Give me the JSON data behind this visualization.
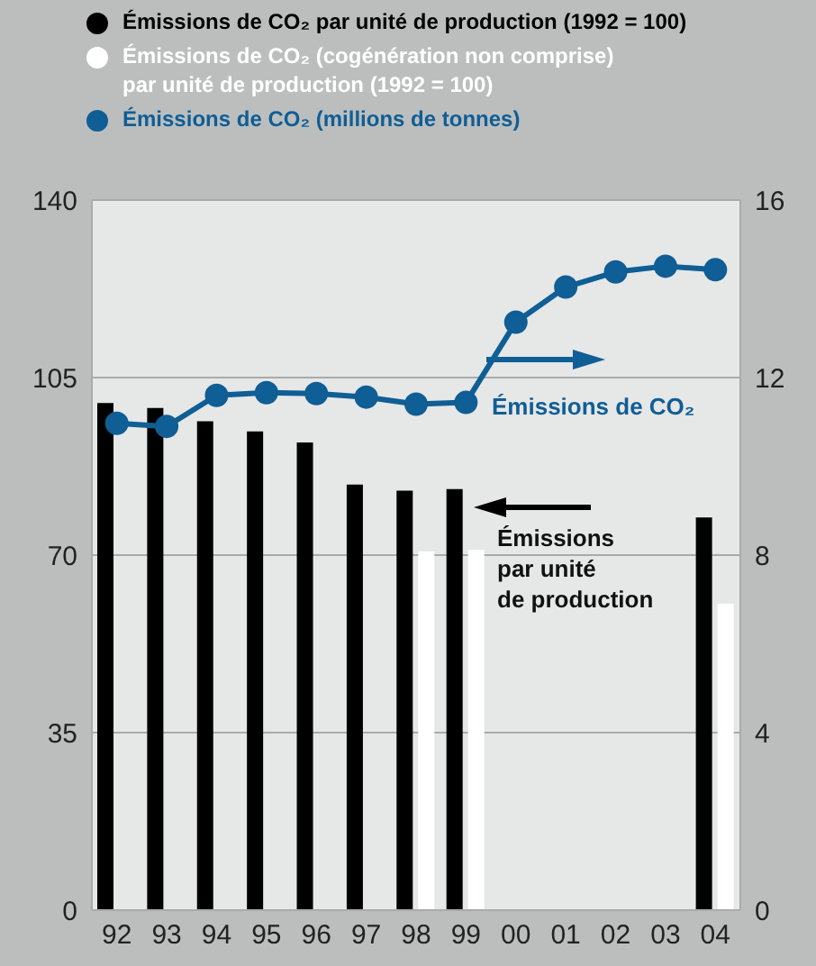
{
  "chart_data": {
    "type": "bar",
    "categories": [
      "92",
      "93",
      "94",
      "95",
      "96",
      "97",
      "98",
      "99",
      "00",
      "01",
      "02",
      "03",
      "04"
    ],
    "series": [
      {
        "name": "Émissions de CO₂ par unité de production (1992 = 100)",
        "color": "#000000",
        "values": [
          100,
          99,
          96.4,
          94.4,
          92.2,
          83.9,
          82.7,
          83,
          null,
          null,
          null,
          null,
          77.4
        ]
      },
      {
        "name": "Émissions de CO₂ (cogénération non comprise) par unité de production (1992 = 100)",
        "color": "#ffffff",
        "values": [
          null,
          null,
          null,
          null,
          null,
          null,
          70.7,
          71,
          null,
          null,
          null,
          null,
          60.4
        ]
      },
      {
        "name": "Émissions de CO₂ (millions de tonnes)",
        "color": "#0f5e95",
        "type": "line",
        "axis": "y2",
        "values": [
          10.97,
          10.9,
          11.6,
          11.66,
          11.64,
          11.56,
          11.4,
          11.44,
          13.25,
          14.04,
          14.38,
          14.51,
          14.43
        ]
      }
    ],
    "ylim": [
      0,
      140
    ],
    "yticks": [
      0,
      35,
      70,
      105,
      140
    ],
    "y2lim": [
      0,
      16
    ],
    "y2ticks": [
      0,
      4,
      8,
      12,
      16
    ],
    "grid": "y",
    "legend": "top",
    "marker": "circle",
    "annotations": [
      "Émissions de CO₂",
      "Émissions\npar unité\nde production"
    ]
  }
}
